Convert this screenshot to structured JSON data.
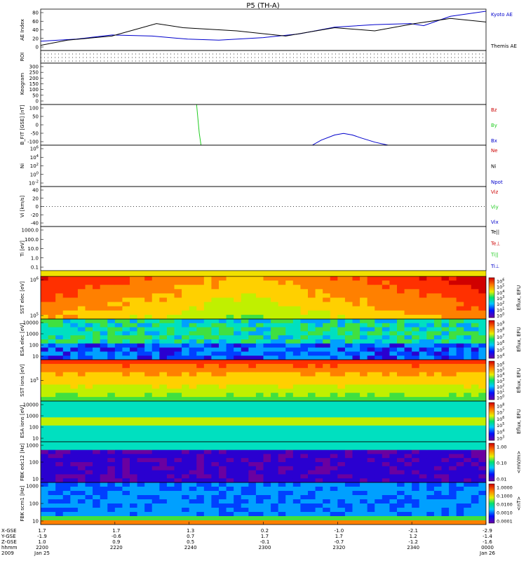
{
  "title": "P5 (TH-A)",
  "colors": {
    "red": "#cc0000",
    "green": "#22cc22",
    "blue": "#0000cc",
    "black": "#000000"
  },
  "chart_data": [
    {
      "type": "line",
      "id": "ae",
      "ylabel": "AE Index",
      "yticks": [
        "80",
        "60",
        "40",
        "20",
        "0"
      ],
      "ylim": [
        0,
        80
      ],
      "series": [
        {
          "name": "Kyoto AE",
          "color": "#0000cc",
          "x": [
            0,
            8,
            16,
            25,
            33,
            40,
            50,
            58,
            66,
            75,
            83,
            86,
            92,
            100
          ],
          "values": [
            18,
            22,
            30,
            28,
            22,
            20,
            25,
            32,
            45,
            50,
            52,
            48,
            66,
            76
          ]
        },
        {
          "name": "Themis AE",
          "color": "#000000",
          "x": [
            0,
            6,
            16,
            26,
            32,
            44,
            55,
            66,
            75,
            84,
            92,
            100
          ],
          "values": [
            10,
            20,
            28,
            52,
            44,
            38,
            28,
            44,
            38,
            52,
            62,
            55
          ]
        }
      ]
    },
    {
      "type": "line",
      "id": "roi",
      "ylabel": "ROI"
    },
    {
      "type": "line",
      "id": "keogram",
      "ylabel": "Keogram",
      "yticks": [
        "300",
        "250",
        "200",
        "150",
        "100",
        "50",
        "0"
      ]
    },
    {
      "type": "line",
      "id": "bfit",
      "ylabel": "B_FIT [GSE] [nT]",
      "yticks": [
        "100",
        "50",
        "0",
        "-50",
        "-100"
      ],
      "ylim": [
        -100,
        100
      ],
      "series": [
        {
          "name": "Bz",
          "color": "#cc0000",
          "x": [],
          "values": []
        },
        {
          "name": "By",
          "color": "#22cc22",
          "x": [
            35.0,
            35.3,
            35.6,
            36.0
          ],
          "values": [
            100,
            30,
            -40,
            -100
          ]
        },
        {
          "name": "Bx",
          "color": "#0000cc",
          "x": [
            61,
            63,
            66,
            68,
            70,
            72,
            75,
            78
          ],
          "values": [
            -100,
            -75,
            -50,
            -42,
            -50,
            -65,
            -85,
            -100
          ]
        }
      ]
    },
    {
      "type": "line",
      "id": "ni",
      "ylabel": "Ni",
      "yticks": [
        "10^6",
        "10^4",
        "10^2",
        "10^0",
        "10^-2"
      ],
      "ylim": [
        -2,
        6
      ],
      "ylog": true,
      "series": [
        {
          "name": "Ne",
          "color": "#cc0000"
        },
        {
          "name": "Ni",
          "color": "#000000"
        },
        {
          "name": "Npot",
          "color": "#0000cc"
        }
      ]
    },
    {
      "type": "line",
      "id": "vi",
      "ylabel": "Vi [km/s]",
      "yticks": [
        "40",
        "20",
        "0",
        "-20",
        "-40"
      ],
      "ylim": [
        -50,
        50
      ],
      "series": [
        {
          "name": "Viz",
          "color": "#cc0000"
        },
        {
          "name": "Viy",
          "color": "#22cc22"
        },
        {
          "name": "Vix",
          "color": "#0000cc"
        }
      ]
    },
    {
      "type": "line",
      "id": "ti",
      "ylabel": "Ti [eV]",
      "yticks": [
        "1000.0",
        "100.0",
        "10.0",
        "1.0",
        "0.1"
      ],
      "ylim": [
        -1,
        3.5
      ],
      "ylog": true,
      "series": [
        {
          "name": "Te||",
          "color": "#000000"
        },
        {
          "name": "Te⊥",
          "color": "#cc0000"
        },
        {
          "name": "Ti||",
          "color": "#22cc22"
        },
        {
          "name": "Ti⊥",
          "color": "#0000cc"
        }
      ]
    },
    {
      "type": "heatmap",
      "id": "sst-e",
      "ylabel": "SST elec [eV]",
      "yticks": [
        "10^6",
        "10^5"
      ],
      "zlabel": "Eflux, EFU",
      "zticks": [
        "10^6",
        "10^5",
        "10^4",
        "10^3",
        "10^2",
        "10^1",
        "10^0"
      ]
    },
    {
      "type": "heatmap",
      "id": "esa-e",
      "ylabel": "ESA elec [eV]",
      "yticks": [
        "10000",
        "1000",
        "100",
        "10"
      ],
      "zlabel": "Eflux, EFU",
      "zticks": [
        "10^9",
        "10^8",
        "10^7",
        "10^6",
        "10^5",
        "10^4"
      ]
    },
    {
      "type": "heatmap",
      "id": "sst-i",
      "ylabel": "SST ions [eV]",
      "yticks": [
        "10^5"
      ],
      "zlabel": "Eflux, EFU",
      "zticks": [
        "10^6",
        "10^5",
        "10^4",
        "10^3",
        "10^2",
        "10^1",
        "10^0"
      ]
    },
    {
      "type": "heatmap",
      "id": "esa-i",
      "ylabel": "ESA ions [eV]",
      "yticks": [
        "10000",
        "1000",
        "100",
        "10"
      ],
      "zlabel": "Eflux, EFU",
      "zticks": [
        "10^8",
        "10^7",
        "10^6",
        "10^5",
        "10^4",
        "10^3"
      ]
    },
    {
      "type": "heatmap",
      "id": "fbk-e",
      "ylabel": "FBK edc12 [Hz]",
      "yticks": [
        "1000",
        "100",
        "10"
      ],
      "zlabel": "<mV/m>",
      "zticks": [
        "1.00",
        "0.10",
        "0.01"
      ]
    },
    {
      "type": "heatmap",
      "id": "fbk-b",
      "ylabel": "FBK scm1 [Hz]",
      "yticks": [
        "1000",
        "100",
        "10"
      ],
      "zlabel": "<nT>",
      "zticks": [
        "1.0000",
        "0.1000",
        "0.0100",
        "0.0010",
        "0.0001"
      ]
    }
  ],
  "xaxis": {
    "row_labels": [
      "X-GSE",
      "Y-GSE",
      "Z-GSE",
      "hhmm",
      "2009"
    ],
    "ticks": [
      {
        "x": [
          "1.7",
          "-1.9",
          "1.0",
          "2200",
          "Jan 25"
        ]
      },
      {
        "x": [
          "1.7",
          "-0.6",
          "0.9",
          "2220",
          ""
        ]
      },
      {
        "x": [
          "1.3",
          "0.7",
          "0.5",
          "2240",
          ""
        ]
      },
      {
        "x": [
          "0.2",
          "1.7",
          "-0.1",
          "2300",
          ""
        ]
      },
      {
        "x": [
          "-1.0",
          "1.7",
          "-0.7",
          "2320",
          ""
        ]
      },
      {
        "x": [
          "-2.1",
          "1.2",
          "-1.2",
          "2340",
          ""
        ]
      },
      {
        "x": [
          "-2.9",
          "-1.4",
          "-1.6",
          "0000",
          "Jan 26"
        ]
      }
    ]
  }
}
